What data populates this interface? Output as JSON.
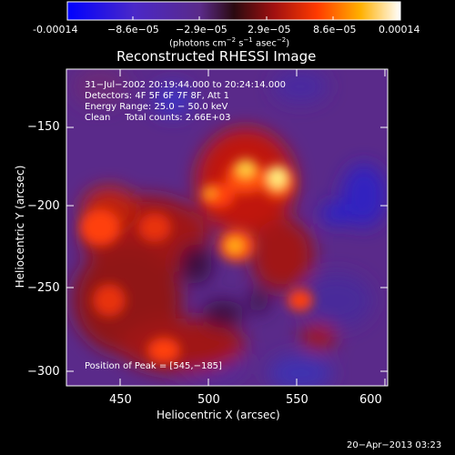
{
  "colorbar": {
    "ticks": [
      "-0.00014",
      "−8.6e−05",
      "−2.9e−05",
      "2.9e−05",
      "8.6e−05",
      "0.00014"
    ],
    "units_main": "(photons cm",
    "units_sup1": "−2",
    "units_mid": " s",
    "units_sup2": "−1",
    "units_mid2": " asec",
    "units_sup3": "−2",
    "units_end": ")"
  },
  "plot": {
    "title": "Reconstructed RHESSI Image",
    "info_line1": "31−Jul−2002 20:19:44.000 to 20:24:14.000",
    "info_line2": "Detectors: 4F 5F 6F 7F 8F, Att 1",
    "info_line3": "Energy Range: 25.0 − 50.0 keV",
    "info_line4": "Clean     Total counts: 2.66E+03",
    "peak_label": "Position of Peak = [545,−185]",
    "xlabel": "Heliocentric X (arcsec)",
    "ylabel": "Heliocentric Y (arcsec)",
    "x_ticks": [
      "450",
      "500",
      "550",
      "600"
    ],
    "y_ticks": [
      "−150",
      "−200",
      "−250",
      "−300"
    ]
  },
  "footer": {
    "date": "20−Apr−2013 03:23"
  }
}
